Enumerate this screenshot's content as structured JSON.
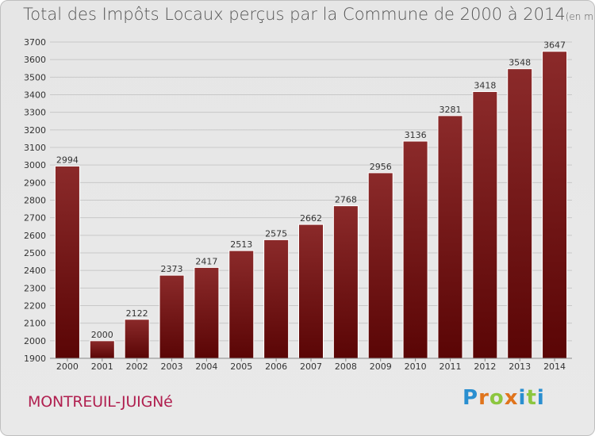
{
  "title": "Total des Impôts Locaux perçus par la Commune de 2000 à 2014",
  "unit_note": "(en milliers d'€)",
  "commune": "MONTREUIL-JUIGNé",
  "logo": {
    "letters": [
      "P",
      "r",
      "o",
      "x",
      "i",
      "t",
      "i"
    ],
    "colors": [
      "#2a8fd0",
      "#e0741c",
      "#8cc63f",
      "#e0741c",
      "#2a8fd0",
      "#8cc63f",
      "#2a8fd0"
    ]
  },
  "colors": {
    "bar": "#8b1a1a",
    "bar_dark": "#5a0808",
    "grid": "#c8c8c8",
    "text": "#333333"
  },
  "chart_data": {
    "type": "bar",
    "categories": [
      "2000",
      "2001",
      "2002",
      "2003",
      "2004",
      "2005",
      "2006",
      "2007",
      "2008",
      "2009",
      "2010",
      "2011",
      "2012",
      "2013",
      "2014"
    ],
    "values": [
      2994,
      2000,
      2122,
      2373,
      2417,
      2513,
      2575,
      2662,
      2768,
      2956,
      3136,
      3281,
      3418,
      3548,
      3647
    ],
    "ylim": [
      1900,
      3700
    ],
    "yticks": [
      1900,
      2000,
      2100,
      2200,
      2300,
      2400,
      2500,
      2600,
      2700,
      2800,
      2900,
      3000,
      3100,
      3200,
      3300,
      3400,
      3500,
      3600,
      3700
    ],
    "grid": true
  }
}
